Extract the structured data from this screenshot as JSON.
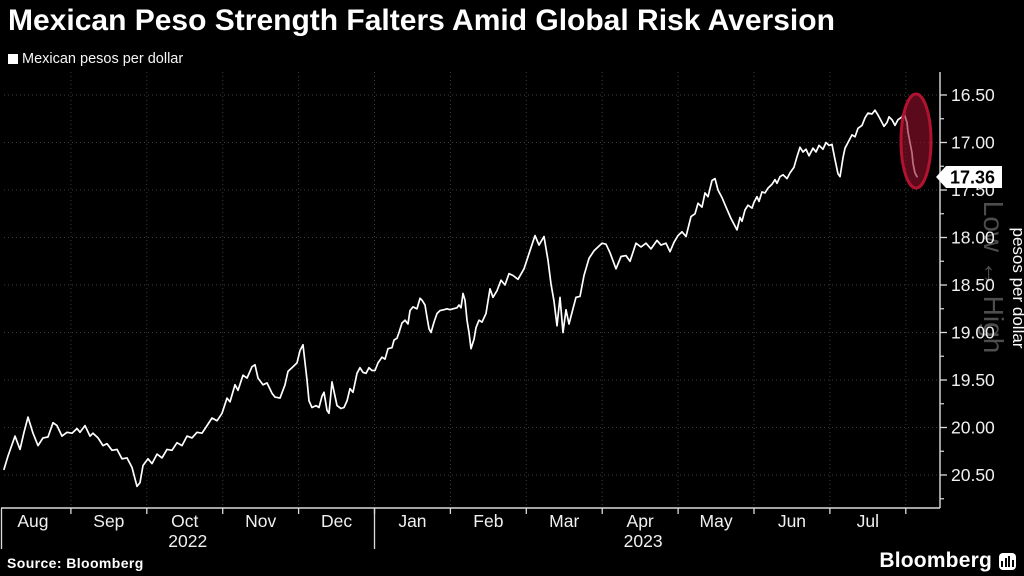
{
  "page": {
    "title": "Mexican Peso Strength Falters Amid Global Risk Aversion",
    "source": "Source: Bloomberg",
    "logo_text": "Bloomberg"
  },
  "legend": {
    "label": "Mexican pesos per dollar"
  },
  "colors": {
    "background": "#000000",
    "line": "#ffffff",
    "grid": "#3c3c3c",
    "axis": "#dcdcdc",
    "tick_label": "#f0f0f0",
    "watermark": "#4d4d4d",
    "annotation_fill": "rgba(150,16,45,0.60)",
    "annotation_stroke": "#b01330",
    "flag_bg": "#ffffff",
    "flag_text": "#000000"
  },
  "chart_data": {
    "type": "line",
    "title": "Mexican pesos per dollar",
    "x_axis": {
      "months": [
        "Aug",
        "Sep",
        "Oct",
        "Nov",
        "Dec",
        "Jan",
        "Feb",
        "Mar",
        "Apr",
        "May",
        "Jun",
        "Jul"
      ],
      "years": [
        {
          "label": "2022",
          "month": "Oct"
        },
        {
          "label": "2023",
          "month": "Apr"
        }
      ],
      "range_note": "Aug 2022 through early Aug 2023"
    },
    "y_axis": {
      "label": "pesos per dollar",
      "min": 16.5,
      "max": 20.5,
      "tick_step": 0.5,
      "minor_tick_step": 0.25,
      "inverted": true,
      "side": "right",
      "tick_labels": [
        "16.50",
        "17.00",
        "17.50",
        "18.00",
        "18.50",
        "19.00",
        "19.50",
        "20.00",
        "20.50"
      ],
      "watermark": "Low ↔ High",
      "grid": true
    },
    "last_price": "17.36",
    "annotation": {
      "shape": "ellipse",
      "meaning": "highlights sharp peso weakening at end of series"
    },
    "points_x_unit": "time position in plot pixels, left(0)=Aug 2022, right(~921)=early Aug 2023",
    "series": [
      {
        "name": "Mexican pesos per dollar",
        "color": "#ffffff",
        "points": [
          [
            4,
            20.44
          ],
          [
            8,
            20.3
          ],
          [
            12,
            20.18
          ],
          [
            15,
            20.09
          ],
          [
            20,
            20.23
          ],
          [
            24,
            20.05
          ],
          [
            28,
            19.89
          ],
          [
            33,
            20.06
          ],
          [
            38,
            20.19
          ],
          [
            43,
            20.11
          ],
          [
            48,
            20.1
          ],
          [
            53,
            19.95
          ],
          [
            57,
            19.98
          ],
          [
            62,
            20.09
          ],
          [
            67,
            20.05
          ],
          [
            72,
            20.06
          ],
          [
            77,
            20.01
          ],
          [
            80,
            20.05
          ],
          [
            85,
            19.98
          ],
          [
            90,
            20.09
          ],
          [
            93,
            20.06
          ],
          [
            98,
            20.11
          ],
          [
            103,
            20.19
          ],
          [
            107,
            20.17
          ],
          [
            112,
            20.24
          ],
          [
            117,
            20.23
          ],
          [
            122,
            20.33
          ],
          [
            127,
            20.32
          ],
          [
            132,
            20.42
          ],
          [
            135,
            20.54
          ],
          [
            137,
            20.62
          ],
          [
            140,
            20.58
          ],
          [
            143,
            20.4
          ],
          [
            148,
            20.33
          ],
          [
            152,
            20.38
          ],
          [
            157,
            20.28
          ],
          [
            162,
            20.32
          ],
          [
            167,
            20.23
          ],
          [
            172,
            20.24
          ],
          [
            177,
            20.16
          ],
          [
            182,
            20.19
          ],
          [
            187,
            20.09
          ],
          [
            192,
            20.11
          ],
          [
            197,
            20.05
          ],
          [
            202,
            20.06
          ],
          [
            207,
            19.98
          ],
          [
            212,
            19.9
          ],
          [
            217,
            19.93
          ],
          [
            222,
            19.85
          ],
          [
            227,
            19.69
          ],
          [
            230,
            19.73
          ],
          [
            235,
            19.55
          ],
          [
            238,
            19.61
          ],
          [
            243,
            19.45
          ],
          [
            247,
            19.48
          ],
          [
            252,
            19.36
          ],
          [
            255,
            19.34
          ],
          [
            258,
            19.48
          ],
          [
            263,
            19.55
          ],
          [
            267,
            19.53
          ],
          [
            272,
            19.64
          ],
          [
            275,
            19.68
          ],
          [
            280,
            19.69
          ],
          [
            285,
            19.55
          ],
          [
            288,
            19.41
          ],
          [
            293,
            19.36
          ],
          [
            297,
            19.32
          ],
          [
            300,
            19.19
          ],
          [
            303,
            19.13
          ],
          [
            307,
            19.5
          ],
          [
            309,
            19.72
          ],
          [
            312,
            19.79
          ],
          [
            316,
            19.77
          ],
          [
            319,
            19.79
          ],
          [
            322,
            19.67
          ],
          [
            324,
            19.63
          ],
          [
            327,
            19.82
          ],
          [
            329,
            19.85
          ],
          [
            332,
            19.52
          ],
          [
            337,
            19.77
          ],
          [
            341,
            19.8
          ],
          [
            344,
            19.79
          ],
          [
            347,
            19.72
          ],
          [
            350,
            19.59
          ],
          [
            353,
            19.63
          ],
          [
            357,
            19.43
          ],
          [
            360,
            19.37
          ],
          [
            363,
            19.42
          ],
          [
            366,
            19.43
          ],
          [
            369,
            19.37
          ],
          [
            372,
            19.4
          ],
          [
            375,
            19.4
          ],
          [
            378,
            19.32
          ],
          [
            382,
            19.26
          ],
          [
            385,
            19.28
          ],
          [
            388,
            19.17
          ],
          [
            392,
            19.16
          ],
          [
            394,
            19.08
          ],
          [
            397,
            19.06
          ],
          [
            399,
            19.0
          ],
          [
            402,
            18.9
          ],
          [
            405,
            18.87
          ],
          [
            408,
            18.91
          ],
          [
            410,
            18.77
          ],
          [
            413,
            18.73
          ],
          [
            417,
            18.75
          ],
          [
            420,
            18.64
          ],
          [
            422,
            18.66
          ],
          [
            425,
            18.71
          ],
          [
            427,
            18.84
          ],
          [
            429,
            18.96
          ],
          [
            431,
            19.0
          ],
          [
            434,
            18.89
          ],
          [
            437,
            18.8
          ],
          [
            440,
            18.77
          ],
          [
            444,
            18.76
          ],
          [
            447,
            18.75
          ],
          [
            450,
            18.76
          ],
          [
            453,
            18.75
          ],
          [
            457,
            18.74
          ],
          [
            459,
            18.71
          ],
          [
            461,
            18.74
          ],
          [
            463,
            18.59
          ],
          [
            465,
            18.66
          ],
          [
            467,
            18.87
          ],
          [
            469,
            19.0
          ],
          [
            471,
            19.17
          ],
          [
            474,
            19.07
          ],
          [
            476,
            18.95
          ],
          [
            479,
            18.87
          ],
          [
            482,
            18.89
          ],
          [
            486,
            18.8
          ],
          [
            490,
            18.54
          ],
          [
            493,
            18.63
          ],
          [
            497,
            18.56
          ],
          [
            501,
            18.45
          ],
          [
            505,
            18.5
          ],
          [
            509,
            18.38
          ],
          [
            513,
            18.4
          ],
          [
            518,
            18.44
          ],
          [
            524,
            18.33
          ],
          [
            529,
            18.17
          ],
          [
            535,
            17.98
          ],
          [
            539,
            18.08
          ],
          [
            544,
            17.99
          ],
          [
            548,
            18.24
          ],
          [
            551,
            18.49
          ],
          [
            554,
            18.67
          ],
          [
            557,
            18.93
          ],
          [
            560,
            18.63
          ],
          [
            563,
            19.0
          ],
          [
            566,
            18.76
          ],
          [
            569,
            18.91
          ],
          [
            572,
            18.79
          ],
          [
            576,
            18.63
          ],
          [
            580,
            18.62
          ],
          [
            584,
            18.4
          ],
          [
            589,
            18.22
          ],
          [
            594,
            18.14
          ],
          [
            598,
            18.1
          ],
          [
            602,
            18.06
          ],
          [
            606,
            18.07
          ],
          [
            610,
            18.16
          ],
          [
            616,
            18.33
          ],
          [
            621,
            18.2
          ],
          [
            626,
            18.19
          ],
          [
            630,
            18.25
          ],
          [
            636,
            18.06
          ],
          [
            641,
            18.1
          ],
          [
            646,
            18.06
          ],
          [
            651,
            18.12
          ],
          [
            657,
            18.03
          ],
          [
            661,
            18.08
          ],
          [
            666,
            18.06
          ],
          [
            670,
            18.15
          ],
          [
            674,
            18.05
          ],
          [
            678,
            17.98
          ],
          [
            682,
            17.94
          ],
          [
            686,
            17.99
          ],
          [
            691,
            17.78
          ],
          [
            695,
            17.75
          ],
          [
            698,
            17.64
          ],
          [
            702,
            17.68
          ],
          [
            705,
            17.53
          ],
          [
            708,
            17.57
          ],
          [
            712,
            17.4
          ],
          [
            715,
            17.38
          ],
          [
            718,
            17.5
          ],
          [
            722,
            17.58
          ],
          [
            726,
            17.68
          ],
          [
            731,
            17.8
          ],
          [
            737,
            17.92
          ],
          [
            740,
            17.79
          ],
          [
            742,
            17.83
          ],
          [
            745,
            17.71
          ],
          [
            748,
            17.66
          ],
          [
            752,
            17.69
          ],
          [
            754,
            17.63
          ],
          [
            757,
            17.57
          ],
          [
            759,
            17.62
          ],
          [
            762,
            17.52
          ],
          [
            765,
            17.53
          ],
          [
            768,
            17.48
          ],
          [
            772,
            17.44
          ],
          [
            775,
            17.39
          ],
          [
            777,
            17.43
          ],
          [
            780,
            17.36
          ],
          [
            783,
            17.34
          ],
          [
            787,
            17.38
          ],
          [
            790,
            17.32
          ],
          [
            794,
            17.26
          ],
          [
            797,
            17.15
          ],
          [
            800,
            17.05
          ],
          [
            803,
            17.1
          ],
          [
            806,
            17.07
          ],
          [
            809,
            17.14
          ],
          [
            813,
            17.06
          ],
          [
            816,
            17.1
          ],
          [
            819,
            17.03
          ],
          [
            823,
            17.07
          ],
          [
            826,
            17.0
          ],
          [
            829,
            17.03
          ],
          [
            832,
            17.02
          ],
          [
            835,
            17.18
          ],
          [
            838,
            17.33
          ],
          [
            840,
            17.36
          ],
          [
            843,
            17.16
          ],
          [
            845,
            17.06
          ],
          [
            848,
            17.0
          ],
          [
            852,
            16.92
          ],
          [
            855,
            16.94
          ],
          [
            858,
            16.85
          ],
          [
            862,
            16.82
          ],
          [
            865,
            16.74
          ],
          [
            868,
            16.69
          ],
          [
            872,
            16.7
          ],
          [
            875,
            16.66
          ],
          [
            878,
            16.71
          ],
          [
            882,
            16.79
          ],
          [
            884,
            16.83
          ],
          [
            887,
            16.79
          ],
          [
            889,
            16.73
          ],
          [
            892,
            16.76
          ],
          [
            895,
            16.82
          ],
          [
            898,
            16.76
          ],
          [
            902,
            16.73
          ],
          [
            904,
            16.69
          ],
          [
            907,
            16.79
          ],
          [
            908,
            16.89
          ],
          [
            910,
            17.0
          ],
          [
            912,
            17.11
          ],
          [
            913,
            17.22
          ],
          [
            915,
            17.32
          ],
          [
            917,
            17.36
          ]
        ]
      }
    ]
  }
}
